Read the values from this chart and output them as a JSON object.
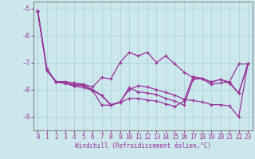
{
  "xlabel": "Windchill (Refroidissement éolien,°C)",
  "bg_color": "#cce8ed",
  "grid_color": "#aacdd5",
  "line_color": "#993399",
  "spine_color": "#888888",
  "xlim": [
    -0.5,
    23.5
  ],
  "ylim": [
    -9.5,
    -4.75
  ],
  "yticks": [
    -9,
    -8,
    -7,
    -6,
    -5
  ],
  "xticks": [
    0,
    1,
    2,
    3,
    4,
    5,
    6,
    7,
    8,
    9,
    10,
    11,
    12,
    13,
    14,
    15,
    16,
    17,
    18,
    19,
    20,
    21,
    22,
    23
  ],
  "line1": [
    -5.1,
    -7.25,
    -7.7,
    -7.7,
    -7.75,
    -7.8,
    -7.9,
    -7.55,
    -7.6,
    -7.0,
    -6.62,
    -6.75,
    -6.62,
    -7.0,
    -6.75,
    -7.05,
    -7.35,
    -7.55,
    -7.6,
    -7.8,
    -7.75,
    -7.7,
    -7.05,
    -7.05
  ],
  "line2": [
    -5.1,
    -7.25,
    -7.7,
    -7.75,
    -7.8,
    -7.82,
    -8.0,
    -8.2,
    -8.55,
    -8.45,
    -8.0,
    -7.85,
    -7.9,
    -8.0,
    -8.1,
    -8.2,
    -8.35,
    -8.4,
    -8.45,
    -8.55,
    -8.55,
    -8.6,
    -9.0,
    -7.05
  ],
  "line3": [
    -5.1,
    -7.25,
    -7.7,
    -7.75,
    -7.85,
    -7.85,
    -8.02,
    -8.22,
    -8.57,
    -8.47,
    -7.92,
    -8.08,
    -8.12,
    -8.18,
    -8.32,
    -8.42,
    -8.57,
    -7.62,
    -7.58,
    -7.72,
    -7.62,
    -7.72,
    -8.12,
    -7.05
  ],
  "line4": [
    -5.1,
    -7.3,
    -7.72,
    -7.77,
    -7.87,
    -7.92,
    -8.02,
    -8.57,
    -8.57,
    -8.47,
    -8.32,
    -8.32,
    -8.38,
    -8.42,
    -8.52,
    -8.62,
    -8.42,
    -7.52,
    -7.58,
    -7.72,
    -7.62,
    -7.77,
    -8.12,
    -7.05
  ],
  "tick_fontsize": 5.5,
  "xlabel_fontsize": 5.5
}
